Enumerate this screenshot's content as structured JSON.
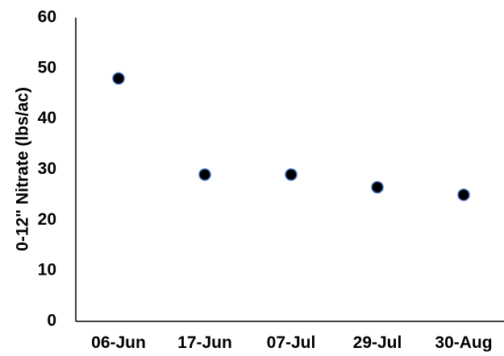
{
  "chart_data": {
    "type": "scatter",
    "title": "",
    "xlabel": "",
    "ylabel": "0-12\" Nitrate (lbs/ac)",
    "categories": [
      "06-Jun",
      "17-Jun",
      "07-Jul",
      "29-Jul",
      "30-Aug"
    ],
    "values": [
      48,
      29,
      29,
      26.5,
      25
    ],
    "ylim": [
      0,
      60
    ],
    "yticks": [
      0,
      10,
      20,
      30,
      40,
      50,
      60
    ],
    "grid": false,
    "legend": "none",
    "marker_fill": "#000000",
    "marker_edge": "#4472C4"
  }
}
